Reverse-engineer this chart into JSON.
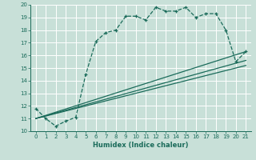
{
  "xlabel": "Humidex (Indice chaleur)",
  "bg_color": "#c8e0d8",
  "grid_color": "#ffffff",
  "line_color": "#1a6b5a",
  "xlim": [
    -0.5,
    21.5
  ],
  "ylim": [
    10,
    20
  ],
  "xticks": [
    0,
    1,
    2,
    3,
    4,
    5,
    6,
    7,
    8,
    9,
    10,
    11,
    12,
    13,
    14,
    15,
    16,
    17,
    18,
    19,
    20,
    21
  ],
  "yticks": [
    10,
    11,
    12,
    13,
    14,
    15,
    16,
    17,
    18,
    19,
    20
  ],
  "series1_x": [
    0,
    1,
    2,
    3,
    4,
    5,
    6,
    7,
    8,
    9,
    10,
    11,
    12,
    13,
    14,
    15,
    16,
    17,
    18,
    19,
    20,
    21
  ],
  "series1_y": [
    11.8,
    11.0,
    10.4,
    10.8,
    11.1,
    14.5,
    17.1,
    17.8,
    18.0,
    19.1,
    19.1,
    18.8,
    19.8,
    19.5,
    19.5,
    19.8,
    19.0,
    19.3,
    19.3,
    18.0,
    15.5,
    16.3
  ],
  "series2_x": [
    0,
    21
  ],
  "series2_y": [
    11.0,
    16.3
  ],
  "series3_x": [
    0,
    21
  ],
  "series3_y": [
    11.0,
    15.6
  ],
  "series4_x": [
    0,
    21
  ],
  "series4_y": [
    11.0,
    15.2
  ]
}
